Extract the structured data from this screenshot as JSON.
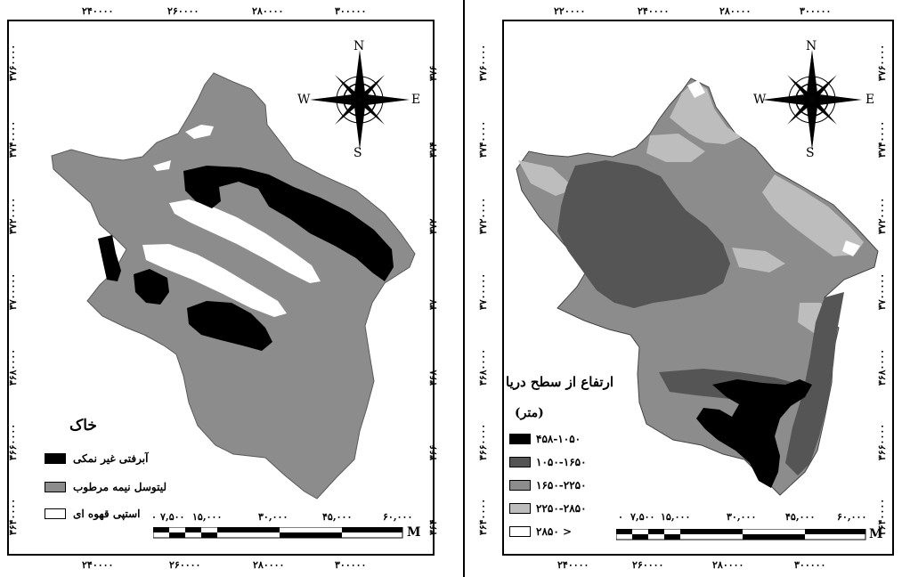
{
  "left_map": {
    "legend_title": "خاک",
    "legend": [
      {
        "label": "آبرفتی غیر نمکی",
        "color": "#000000"
      },
      {
        "label": "لیتوسل نیمه مرطوب",
        "color": "#8c8c8c"
      },
      {
        "label": "استپی قهوه ای",
        "color": "#ffffff"
      }
    ],
    "top_ticks": [
      "۲۴۰۰۰۰",
      "۲۶۰۰۰۰",
      "۲۸۰۰۰۰",
      "۳۰۰۰۰۰"
    ],
    "bottom_ticks": [
      "۲۴۰۰۰۰",
      "۲۶۰۰۰۰",
      "۲۸۰۰۰۰",
      "۳۰۰۰۰۰"
    ],
    "side_ticks": [
      "۳۷۶۰۰۰۰",
      "۳۷۴۰۰۰۰",
      "۳۷۲۰۰۰۰",
      "۳۷۰۰۰۰۰",
      "۳۶۸۰۰۰۰",
      "۳۶۶۰۰۰۰",
      "۳۶۴۰۰۰۰"
    ],
    "scale_labels": [
      "۰",
      "۷,۵۰۰",
      "۱۵,۰۰۰",
      "۳۰,۰۰۰",
      "۴۵,۰۰۰",
      "۶۰,۰۰۰"
    ],
    "scale_unit": "M"
  },
  "right_map": {
    "legend_title": "ارتفاع از سطح دریا",
    "legend_subtitle": "(متر)",
    "legend": [
      {
        "label": "۴۵۸-۱۰۵۰",
        "color": "#000000"
      },
      {
        "label": "۱۰۵۰-۱۶۵۰",
        "color": "#555555"
      },
      {
        "label": "۱۶۵۰-۲۲۵۰",
        "color": "#8c8c8c"
      },
      {
        "label": "۲۲۵۰-۲۸۵۰",
        "color": "#bdbdbd"
      },
      {
        "label": "۲۸۵۰ >",
        "color": "#ffffff"
      }
    ],
    "top_ticks": [
      "۲۲۰۰۰۰",
      "۲۴۰۰۰۰",
      "۲۸۰۰۰۰",
      "۳۰۰۰۰۰"
    ],
    "bottom_ticks": [
      "۲۴۰۰۰۰",
      "۲۶۰۰۰۰",
      "۲۸۰۰۰۰",
      "۳۰۰۰۰۰"
    ],
    "side_ticks": [
      "۳۷۶۰۰۰۰",
      "۳۷۴۰۰۰۰",
      "۳۷۲۰۰۰۰",
      "۳۷۰۰۰۰۰",
      "۳۶۸۰۰۰۰",
      "۳۶۶۰۰۰۰",
      "۳۶۴۰۰۰۰"
    ],
    "scale_labels": [
      "۰",
      "۷,۵۰۰",
      "۱۵,۰۰۰",
      "۳۰,۰۰۰",
      "۴۵,۰۰۰",
      "۶۰,۰۰۰"
    ],
    "scale_unit": "M"
  },
  "compass": {
    "n": "N",
    "s": "S",
    "e": "E",
    "w": "W"
  }
}
